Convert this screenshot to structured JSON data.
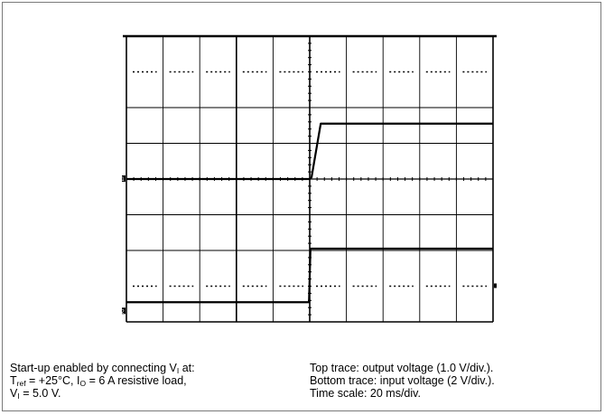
{
  "chart_data": {
    "type": "line",
    "title": "",
    "xlabel": "",
    "ylabel": "",
    "grid": true,
    "x_divisions": 10,
    "y_divisions": 8,
    "trigger_division": 5,
    "series": [
      {
        "trace": "top",
        "x_div": [
          0,
          5.0,
          5.05,
          5.3,
          10
        ],
        "y_div": [
          4.0,
          4.0,
          4.05,
          5.55,
          5.55
        ]
      },
      {
        "trace": "bottom",
        "x_div": [
          0,
          4.98,
          5.02,
          10
        ],
        "y_div": [
          0.55,
          0.55,
          2.05,
          2.05
        ]
      }
    ],
    "markers": [
      "1",
      "2"
    ]
  },
  "caption": {
    "left": {
      "line1_text": "Start-up enabled by connecting V",
      "line1_sub": "I",
      "line1_tail": " at:",
      "line2_t": "T",
      "line2_t_sub": "ref",
      "line2_mid": " = +25°C, I",
      "line2_i_sub": "O",
      "line2_tail": " = 6 A resistive load,",
      "line3_v": "V",
      "line3_v_sub": "I",
      "line3_tail": " = 5.0 V."
    },
    "right": {
      "line1": "Top trace: output voltage (1.0 V/div.).",
      "line2": "Bottom trace: input voltage (2 V/div.).",
      "line3": "Time scale: 20 ms/div."
    }
  }
}
